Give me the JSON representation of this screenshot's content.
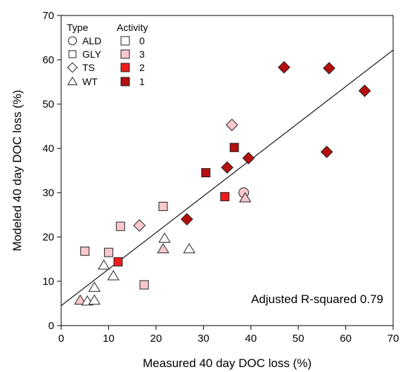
{
  "chart_data": {
    "type": "scatter",
    "xlabel": "Measured 40 day DOC loss (%)",
    "ylabel": "Modeled 40 day DOC loss (%)",
    "xlim": [
      0,
      70
    ],
    "ylim": [
      0,
      70
    ],
    "xticks": [
      0,
      10,
      20,
      30,
      40,
      50,
      60,
      70
    ],
    "yticks": [
      0,
      10,
      20,
      30,
      40,
      50,
      60,
      70
    ],
    "grid": false,
    "annotation": "Adjusted R-squared 0.79",
    "regression_line": {
      "x0": 0,
      "y0": 4.5,
      "x1": 70,
      "y1": 62.2
    },
    "legend": {
      "placement": "top-left",
      "type_title": "Type",
      "activity_title": "Activity",
      "types": [
        {
          "label": "ALD",
          "marker": "circle"
        },
        {
          "label": "GLY",
          "marker": "square"
        },
        {
          "label": "TS",
          "marker": "diamond"
        },
        {
          "label": "WT",
          "marker": "triangle"
        }
      ],
      "activities": [
        {
          "label": "0",
          "color": "#ffffff"
        },
        {
          "label": "3",
          "color": "#f9c8cc"
        },
        {
          "label": "2",
          "color": "#ee1c1c"
        },
        {
          "label": "1",
          "color": "#b50e0e"
        }
      ]
    },
    "points": [
      {
        "x": 5.0,
        "y": 16.8,
        "type": "GLY",
        "activity": "3"
      },
      {
        "x": 10.0,
        "y": 16.5,
        "type": "GLY",
        "activity": "3"
      },
      {
        "x": 12.5,
        "y": 22.4,
        "type": "GLY",
        "activity": "3"
      },
      {
        "x": 21.5,
        "y": 26.9,
        "type": "GLY",
        "activity": "3"
      },
      {
        "x": 17.5,
        "y": 9.2,
        "type": "GLY",
        "activity": "3"
      },
      {
        "x": 12.0,
        "y": 14.4,
        "type": "GLY",
        "activity": "2"
      },
      {
        "x": 30.5,
        "y": 34.5,
        "type": "GLY",
        "activity": "1"
      },
      {
        "x": 34.5,
        "y": 29.1,
        "type": "GLY",
        "activity": "2"
      },
      {
        "x": 36.5,
        "y": 40.2,
        "type": "GLY",
        "activity": "1"
      },
      {
        "x": 16.5,
        "y": 22.6,
        "type": "TS",
        "activity": "3"
      },
      {
        "x": 36.0,
        "y": 45.3,
        "type": "TS",
        "activity": "3"
      },
      {
        "x": 26.5,
        "y": 24.0,
        "type": "TS",
        "activity": "1"
      },
      {
        "x": 35.0,
        "y": 35.7,
        "type": "TS",
        "activity": "1"
      },
      {
        "x": 39.5,
        "y": 37.8,
        "type": "TS",
        "activity": "1"
      },
      {
        "x": 47.0,
        "y": 58.3,
        "type": "TS",
        "activity": "1"
      },
      {
        "x": 56.5,
        "y": 58.1,
        "type": "TS",
        "activity": "1"
      },
      {
        "x": 64.0,
        "y": 53.0,
        "type": "TS",
        "activity": "1"
      },
      {
        "x": 56.0,
        "y": 39.2,
        "type": "TS",
        "activity": "1"
      },
      {
        "x": 38.5,
        "y": 30.0,
        "type": "ALD",
        "activity": "3"
      },
      {
        "x": 4.0,
        "y": 5.7,
        "type": "WT",
        "activity": "3"
      },
      {
        "x": 5.5,
        "y": 5.5,
        "type": "WT",
        "activity": "0"
      },
      {
        "x": 7.0,
        "y": 5.7,
        "type": "WT",
        "activity": "0"
      },
      {
        "x": 7.0,
        "y": 8.6,
        "type": "WT",
        "activity": "0"
      },
      {
        "x": 9.0,
        "y": 13.6,
        "type": "WT",
        "activity": "0"
      },
      {
        "x": 11.0,
        "y": 11.2,
        "type": "WT",
        "activity": "0"
      },
      {
        "x": 21.5,
        "y": 17.3,
        "type": "WT",
        "activity": "3"
      },
      {
        "x": 21.8,
        "y": 19.7,
        "type": "WT",
        "activity": "0"
      },
      {
        "x": 27.0,
        "y": 17.3,
        "type": "WT",
        "activity": "0"
      },
      {
        "x": 38.8,
        "y": 28.8,
        "type": "WT",
        "activity": "3"
      }
    ]
  }
}
